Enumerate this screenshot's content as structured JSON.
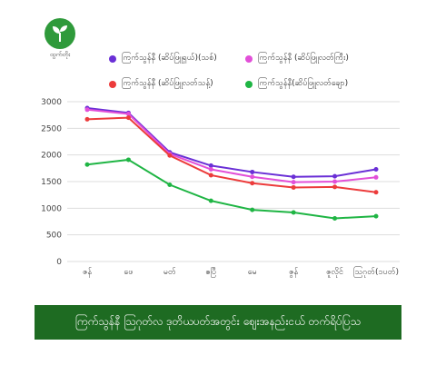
{
  "logo": {
    "text": "ထွက်တိုး"
  },
  "footer": {
    "title": "ကြက်သွန်နီ ဩဂုတ်လ ဒုတိယပတ်အတွင်း ဈေးအနည်းငယ် တက်ရိပ်ပြသ"
  },
  "chart_data": {
    "type": "line",
    "categories": [
      "ဇန်",
      "ဖေ",
      "မတ်",
      "ဧပြီ",
      "မေ",
      "ဇွန်",
      "ဇူလိုင်",
      "ဩဂုတ်(၁ပတ်)"
    ],
    "ylim": [
      0,
      3000
    ],
    "yticks": [
      0,
      500,
      1000,
      1500,
      2000,
      2500,
      3000
    ],
    "grid": true,
    "legend_position": "top",
    "series": [
      {
        "name": "ကြက်သွန်နီ (ဆိပ်ဖြူရှယ်)(သစ်)",
        "color": "#6a2fd6",
        "values": [
          2880,
          2790,
          2050,
          1800,
          1680,
          1590,
          1600,
          1730
        ]
      },
      {
        "name": "ကြက်သွန်နီ (ဆိပ်ဖြူလတ်ကြီး)",
        "color": "#e24fd8",
        "values": [
          2850,
          2770,
          2020,
          1730,
          1590,
          1490,
          1500,
          1580
        ]
      },
      {
        "name": "ကြက်သွန်နီ (ဆိပ်ဖြူလတ်သန့်)",
        "color": "#ec3b3b",
        "values": [
          2670,
          2700,
          1990,
          1620,
          1470,
          1390,
          1400,
          1300
        ]
      },
      {
        "name": "ကြက်သွန်နီ(ဆိပ်ဖြူလတ်ချော)",
        "color": "#1fb544",
        "values": [
          1820,
          1910,
          1440,
          1140,
          970,
          920,
          810,
          850
        ]
      }
    ]
  }
}
